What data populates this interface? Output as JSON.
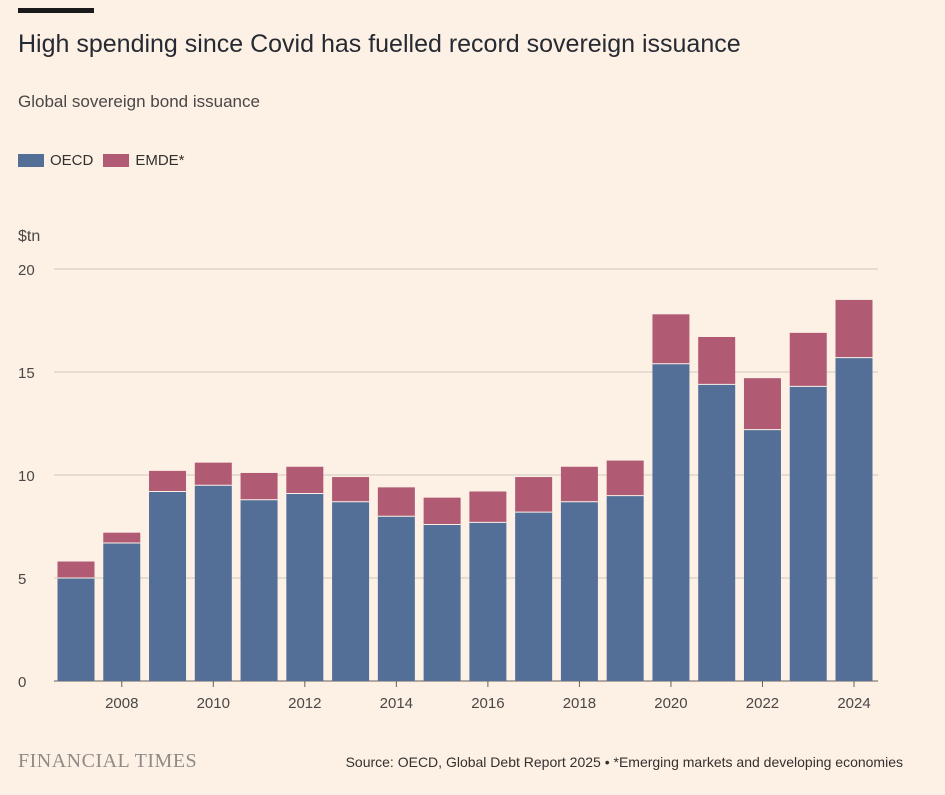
{
  "header": {
    "title": "High spending since Covid has fuelled record sovereign issuance",
    "subtitle": "Global sovereign bond issuance"
  },
  "legend": [
    {
      "label": "OECD",
      "color": "#536f98"
    },
    {
      "label": "EMDE*",
      "color": "#b05a74"
    }
  ],
  "footer": {
    "brand": "FINANCIAL TIMES",
    "source": "Source: OECD, Global Debt Report 2025 • *Emerging markets and developing economies"
  },
  "chart_data": {
    "type": "bar",
    "stacked": true,
    "ylabel": "$tn",
    "ylim": [
      0,
      20
    ],
    "yticks": [
      0,
      5,
      10,
      15,
      20
    ],
    "grid": true,
    "legend_position": "top-left",
    "categories": [
      2007,
      2008,
      2009,
      2010,
      2011,
      2012,
      2013,
      2014,
      2015,
      2016,
      2017,
      2018,
      2019,
      2020,
      2021,
      2022,
      2023,
      2024
    ],
    "xtick_labels": [
      "2008",
      "2010",
      "2012",
      "2014",
      "2016",
      "2018",
      "2020",
      "2022",
      "2024"
    ],
    "series": [
      {
        "name": "OECD",
        "color": "#536f98",
        "values": [
          5.0,
          6.7,
          9.2,
          9.5,
          8.8,
          9.1,
          8.7,
          8.0,
          7.6,
          7.7,
          8.2,
          8.7,
          9.0,
          15.4,
          14.4,
          12.2,
          14.3,
          15.7
        ]
      },
      {
        "name": "EMDE*",
        "color": "#b05a74",
        "values": [
          0.8,
          0.5,
          1.0,
          1.1,
          1.3,
          1.3,
          1.2,
          1.4,
          1.3,
          1.5,
          1.7,
          1.7,
          1.7,
          2.4,
          2.3,
          2.5,
          2.6,
          2.8
        ]
      }
    ]
  }
}
